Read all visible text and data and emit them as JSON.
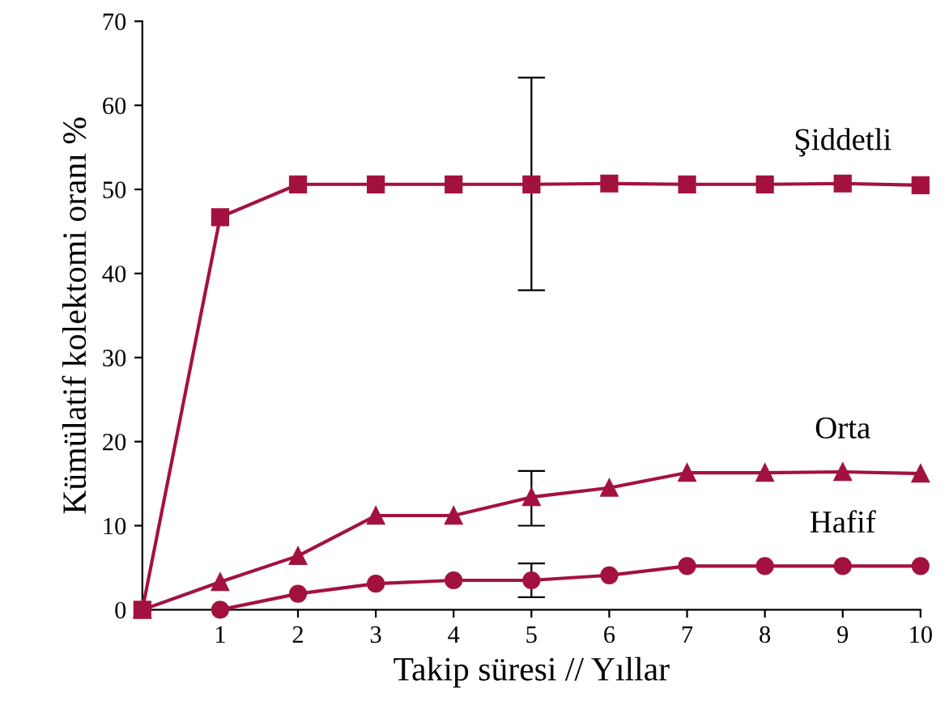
{
  "chart_data": {
    "type": "line",
    "xlabel": "Takip süresi // Yıllar",
    "ylabel": "Kümülatif kolektomi oranı %",
    "xlim": [
      0,
      10
    ],
    "xticks": [
      {
        "value": 0,
        "label": null
      },
      1,
      2,
      3,
      4,
      5,
      6,
      7,
      8,
      9,
      10
    ],
    "ylim": [
      0,
      70
    ],
    "yticks": [
      0,
      10,
      20,
      30,
      40,
      50,
      60,
      70
    ],
    "grid": false,
    "series": [
      {
        "name": "Şiddetli",
        "color": "#a3123f",
        "marker": "square",
        "x": [
          0,
          1,
          2,
          3,
          4,
          5,
          6,
          7,
          8,
          9,
          10
        ],
        "values": [
          0,
          46.7,
          50.6,
          50.6,
          50.6,
          50.6,
          50.7,
          50.6,
          50.6,
          50.7,
          50.5
        ],
        "errors": [
          null,
          null,
          null,
          null,
          null,
          [
            38,
            63.3
          ],
          null,
          null,
          null,
          null,
          null
        ]
      },
      {
        "name": "Orta",
        "color": "#a3123f",
        "marker": "triangle",
        "x": [
          0,
          1,
          2,
          3,
          4,
          5,
          6,
          7,
          8,
          9,
          10
        ],
        "values": [
          0,
          3.3,
          6.4,
          11.2,
          11.2,
          13.4,
          14.5,
          16.3,
          16.3,
          16.4,
          16.2
        ],
        "errors": [
          null,
          null,
          null,
          null,
          null,
          [
            10,
            16.5
          ],
          null,
          null,
          null,
          null,
          null
        ]
      },
      {
        "name": "Hafif",
        "color": "#a3123f",
        "marker": "circle",
        "x": [
          1,
          2,
          3,
          4,
          5,
          6,
          7,
          8,
          9,
          10
        ],
        "values": [
          0,
          1.9,
          3.1,
          3.5,
          3.5,
          4.1,
          5.2,
          5.2,
          5.2,
          5.2
        ],
        "errors": [
          null,
          null,
          null,
          null,
          [
            1.5,
            5.5
          ],
          null,
          null,
          null,
          null,
          null
        ]
      }
    ]
  }
}
